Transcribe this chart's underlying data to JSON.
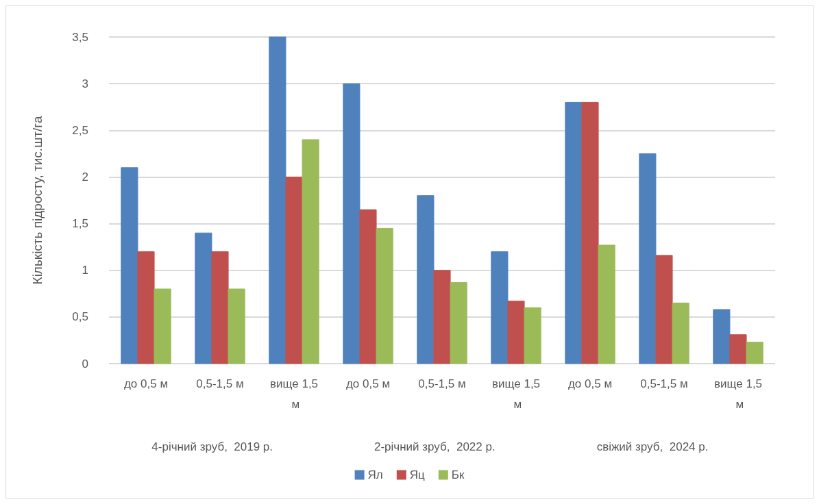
{
  "chart_data": {
    "type": "bar",
    "ylabel": "Кількість підросту, тис.шт/га",
    "categories": [
      "до 0,5 м",
      "0,5-1,5 м",
      "вище 1,5 м",
      "до 0,5 м",
      "0,5-1,5 м",
      "вище 1,5 м",
      "до 0,5 м",
      "0,5-1,5 м",
      "вище 1,5 м"
    ],
    "series": [
      {
        "name": "Ял",
        "color": "#4f81bd",
        "values": [
          2.1,
          1.4,
          3.5,
          3.0,
          1.8,
          1.2,
          2.8,
          2.25,
          0.58
        ]
      },
      {
        "name": "Яц",
        "color": "#c0504d",
        "values": [
          1.2,
          1.2,
          2.0,
          1.65,
          1.0,
          0.67,
          2.8,
          1.16,
          0.31
        ]
      },
      {
        "name": "Бк",
        "color": "#9bbb59",
        "values": [
          0.8,
          0.8,
          2.4,
          1.45,
          0.87,
          0.6,
          1.27,
          0.65,
          0.23
        ]
      }
    ],
    "annotations": [
      "4-річний зруб,  2019 р.",
      "2-річний зруб,  2022 р.",
      "свіжий зруб,  2024 р."
    ],
    "ylim": [
      0,
      3.5
    ],
    "yticks": [
      0,
      {
        "value": 0.5,
        "label": "0,5"
      },
      1,
      {
        "value": 1.5,
        "label": "1,5"
      },
      2,
      {
        "value": 2.5,
        "label": "2,5"
      },
      3,
      {
        "value": 3.5,
        "label": "3,5"
      }
    ],
    "grid": "y",
    "legend": "bottom"
  }
}
